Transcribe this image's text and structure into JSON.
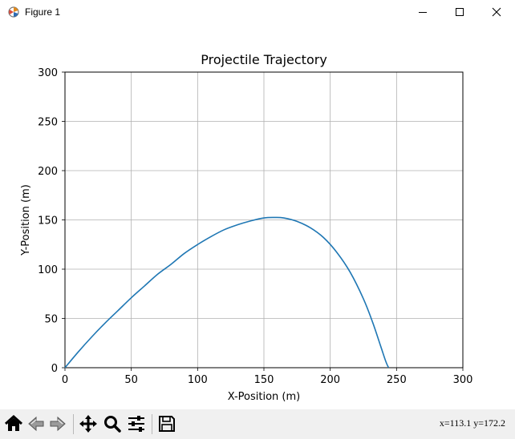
{
  "window": {
    "title": "Figure 1"
  },
  "icons": {
    "app": "matplotlib-figure-icon",
    "minimize": "minimize-icon",
    "maximize": "maximize-icon",
    "close": "close-icon",
    "home": "home-icon",
    "back": "back-arrow-icon",
    "forward": "forward-arrow-icon",
    "pan": "pan-move-icon",
    "zoom": "zoom-magnifier-icon",
    "configure": "configure-subplots-icon",
    "save": "save-floppy-icon"
  },
  "toolbar": {
    "coords": "x=113.1 y=172.2"
  },
  "chart_data": {
    "type": "line",
    "title": "Projectile Trajectory",
    "xlabel": "X-Position (m)",
    "ylabel": "Y-Position (m)",
    "xlim": [
      0,
      300
    ],
    "ylim": [
      0,
      300
    ],
    "xticks": [
      "0",
      "50",
      "100",
      "150",
      "200",
      "250",
      "300"
    ],
    "yticks": [
      "0",
      "50",
      "100",
      "150",
      "200",
      "250",
      "300"
    ],
    "grid": true,
    "line_color": "#1f77b4",
    "series": [
      {
        "x": [
          0,
          10,
          20,
          30,
          40,
          50,
          60,
          70,
          80,
          90,
          100,
          110,
          120,
          130,
          140,
          150,
          158,
          165,
          175,
          185,
          195,
          205,
          215,
          225,
          232,
          238,
          242,
          244
        ],
        "y": [
          0,
          16,
          31,
          45,
          58,
          71,
          83,
          95,
          105,
          116,
          125,
          133,
          140,
          145,
          149,
          152,
          152.5,
          152,
          148.5,
          142,
          132,
          117,
          97,
          70,
          46,
          22,
          6,
          0
        ]
      }
    ]
  }
}
